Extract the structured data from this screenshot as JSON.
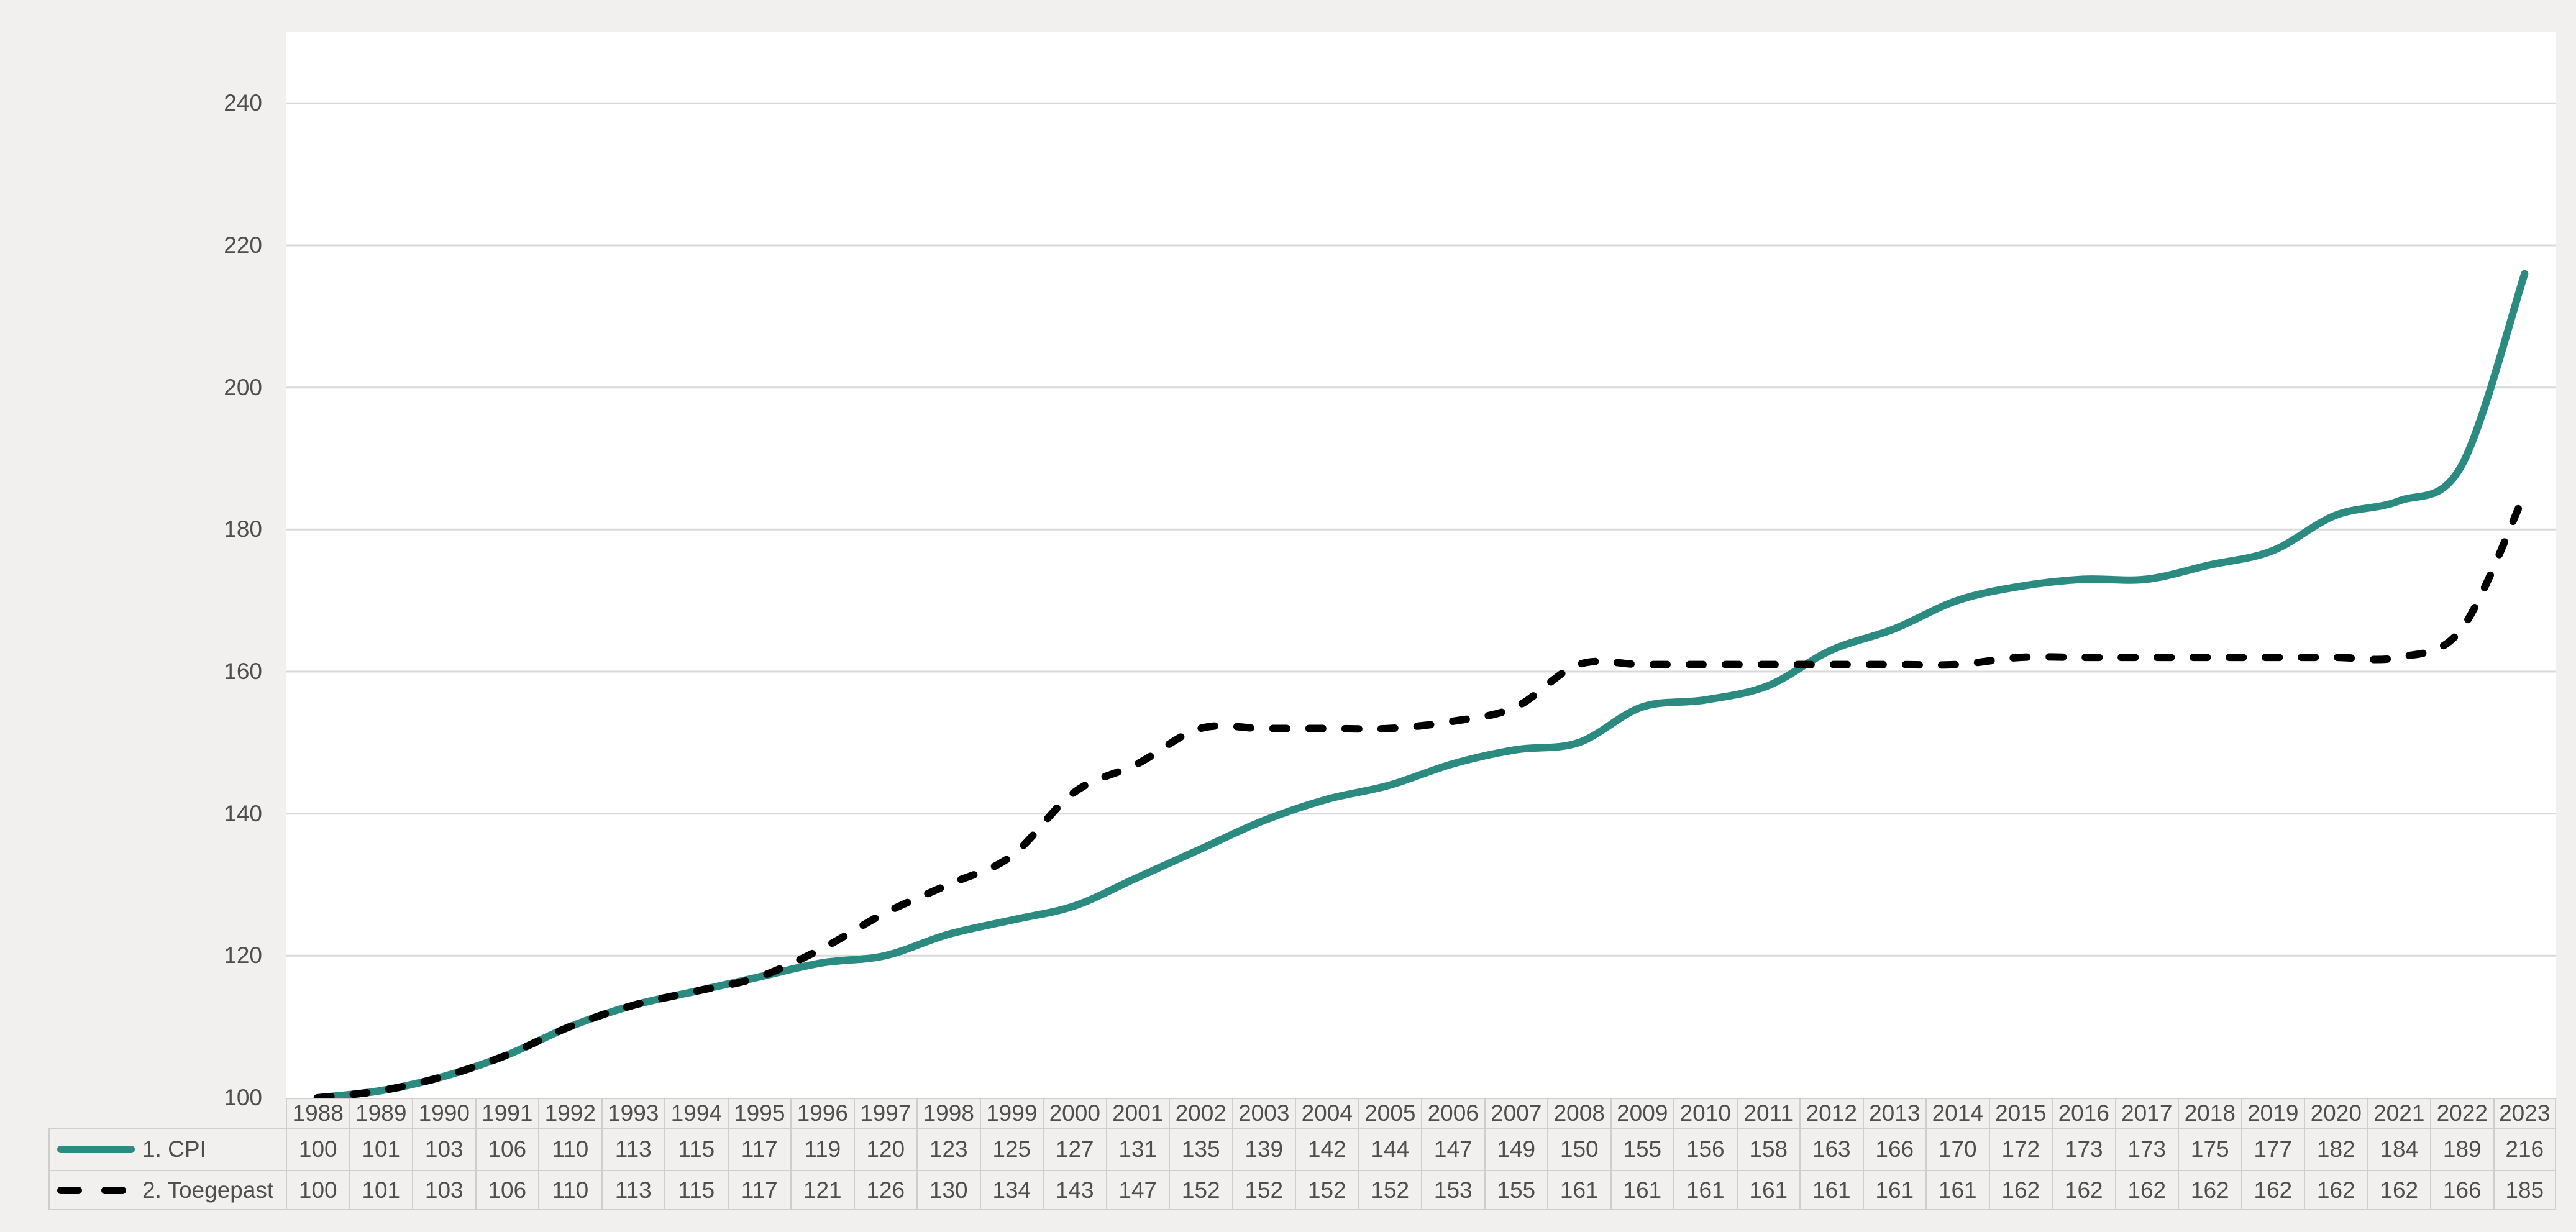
{
  "chart_data": {
    "type": "line",
    "title": "",
    "categories": [
      "1988",
      "1989",
      "1990",
      "1991",
      "1992",
      "1993",
      "1994",
      "1995",
      "1996",
      "1997",
      "1998",
      "1999",
      "2000",
      "2001",
      "2002",
      "2003",
      "2004",
      "2005",
      "2006",
      "2007",
      "2008",
      "2009",
      "2010",
      "2011",
      "2012",
      "2013",
      "2014",
      "2015",
      "2016",
      "2017",
      "2018",
      "2019",
      "2020",
      "2021",
      "2022",
      "2023"
    ],
    "series": [
      {
        "name": "1. CPI",
        "color": "#2b8b80",
        "line_style": "solid",
        "values": [
          100,
          101,
          103,
          106,
          110,
          113,
          115,
          117,
          119,
          120,
          123,
          125,
          127,
          131,
          135,
          139,
          142,
          144,
          147,
          149,
          150,
          155,
          156,
          158,
          163,
          166,
          170,
          172,
          173,
          173,
          175,
          177,
          182,
          184,
          189,
          216
        ]
      },
      {
        "name": "2. Toegepast",
        "color": "#000000",
        "line_style": "dashed",
        "values": [
          100,
          101,
          103,
          106,
          110,
          113,
          115,
          117,
          121,
          126,
          130,
          134,
          143,
          147,
          152,
          152,
          152,
          152,
          153,
          155,
          161,
          161,
          161,
          161,
          161,
          161,
          161,
          162,
          162,
          162,
          162,
          162,
          162,
          162,
          166,
          185
        ]
      }
    ],
    "xlabel": "",
    "ylabel": "",
    "ylim": [
      100,
      250
    ],
    "yticks": [
      100,
      120,
      140,
      160,
      180,
      200,
      220,
      240
    ],
    "grid": true,
    "smooth_lines": true,
    "legend_position": "left-of-data-table",
    "data_table_shown": true
  },
  "colors": {
    "page_bg": "#f1f0ef",
    "plot_bg": "#ffffff",
    "gridline": "#d9d9d9",
    "table_border": "#cfcecd",
    "text": "#4e4e4e",
    "cpi_line": "#2b8b80",
    "toegepast_line": "#000000"
  }
}
